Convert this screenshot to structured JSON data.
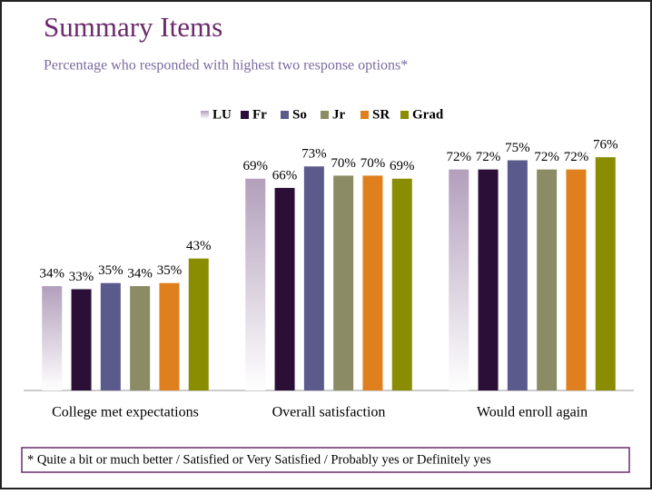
{
  "chart_data": {
    "type": "bar",
    "title": "Summary Items",
    "subtitle": "Percentage who responded with highest two response options*",
    "footnote": "* Quite a bit or much better / Satisfied or Very Satisfied / Probably yes or Definitely yes",
    "categories": [
      "College met expectations",
      "Overall satisfaction",
      "Would enroll again"
    ],
    "series": [
      {
        "name": "LU",
        "color": "#b39fbc",
        "gradient": true,
        "values": [
          34,
          69,
          72
        ],
        "value_labels": [
          "34%",
          "69%",
          "72%"
        ]
      },
      {
        "name": "Fr",
        "color": "#2b0f37",
        "values": [
          33,
          66,
          72
        ],
        "value_labels": [
          "33%",
          "66%",
          "72%"
        ]
      },
      {
        "name": "So",
        "color": "#5b5a8c",
        "values": [
          35,
          73,
          75
        ],
        "value_labels": [
          "35%",
          "73%",
          "75%"
        ]
      },
      {
        "name": "Jr",
        "color": "#8b8c65",
        "values": [
          34,
          70,
          72
        ],
        "value_labels": [
          "34%",
          "70%",
          "72%"
        ]
      },
      {
        "name": "SR",
        "color": "#e07f1d",
        "values": [
          35,
          70,
          72
        ],
        "value_labels": [
          "35%",
          "70%",
          "72%"
        ]
      },
      {
        "name": "Grad",
        "color": "#8a8c02",
        "values": [
          43,
          69,
          76
        ],
        "value_labels": [
          "43%",
          "69%",
          "76%"
        ]
      }
    ],
    "ylim": [
      0,
      100
    ],
    "legend": "top"
  }
}
